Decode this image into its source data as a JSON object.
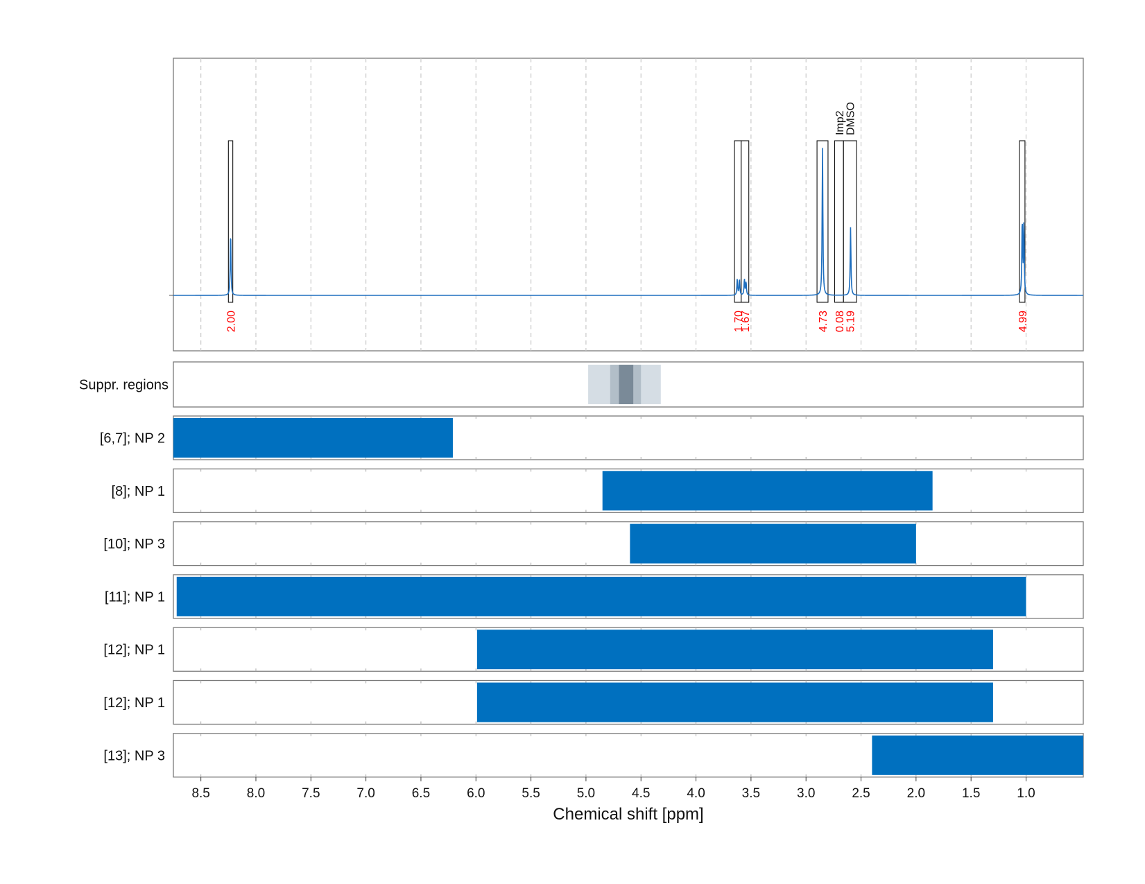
{
  "chart_data": {
    "type": "nmr-spectrum-with-range-bars",
    "xlabel": "Chemical shift [ppm]",
    "xlim": [
      8.75,
      0.48
    ],
    "x_ticks": [
      "8.5",
      "8.0",
      "7.5",
      "7.0",
      "6.5",
      "6.0",
      "5.5",
      "5.0",
      "4.5",
      "4.0",
      "3.5",
      "3.0",
      "2.5",
      "2.0",
      "1.5",
      "1.0"
    ],
    "spectrum": {
      "color": "#1f6fbf",
      "peaks": [
        {
          "ppm": 8.23,
          "height": 0.44,
          "width": 0.004
        },
        {
          "ppm": 3.625,
          "height": 0.11,
          "width": 0.004
        },
        {
          "ppm": 3.605,
          "height": 0.11,
          "width": 0.004
        },
        {
          "ppm": 3.56,
          "height": 0.11,
          "width": 0.004
        },
        {
          "ppm": 3.545,
          "height": 0.09,
          "width": 0.004
        },
        {
          "ppm": 2.85,
          "height": 1.0,
          "width": 0.004
        },
        {
          "ppm": 2.595,
          "height": 0.46,
          "width": 0.004
        },
        {
          "ppm": 1.035,
          "height": 0.51,
          "width": 0.004
        },
        {
          "ppm": 1.02,
          "height": 0.47,
          "width": 0.004
        }
      ]
    },
    "integration_regions": [
      {
        "from": 8.25,
        "to": 8.21,
        "value": "2.00"
      },
      {
        "from": 3.65,
        "to": 3.59,
        "value": "1.70"
      },
      {
        "from": 3.59,
        "to": 3.52,
        "value": "1.67"
      },
      {
        "from": 2.9,
        "to": 2.8,
        "value": "4.73"
      },
      {
        "from": 2.74,
        "to": 2.66,
        "value": "0.08"
      },
      {
        "from": 2.66,
        "to": 2.54,
        "value": "5.19"
      },
      {
        "from": 1.06,
        "to": 1.01,
        "value": "4.99"
      }
    ],
    "peak_annotations": [
      "Imp2",
      "DMSO"
    ],
    "suppression": {
      "label": "Suppr. regions",
      "bands": [
        {
          "from": 4.98,
          "to": 4.32,
          "color": "#d5dde4"
        },
        {
          "from": 4.78,
          "to": 4.5,
          "color": "#b2bec8"
        },
        {
          "from": 4.7,
          "to": 4.57,
          "color": "#7a8a98"
        }
      ]
    },
    "range_rows": [
      {
        "label": "[6,7]; NP 2",
        "from": 8.75,
        "to": 6.21
      },
      {
        "label": "[8]; NP 1",
        "from": 4.85,
        "to": 1.85
      },
      {
        "label": "[10]; NP 3",
        "from": 4.6,
        "to": 2.0
      },
      {
        "label": "[11]; NP 1",
        "from": 8.72,
        "to": 1.0
      },
      {
        "label": "[12]; NP 1",
        "from": 5.99,
        "to": 1.3
      },
      {
        "label": "[12]; NP 1",
        "from": 5.99,
        "to": 1.3
      },
      {
        "label": "[13]; NP 3",
        "from": 2.4,
        "to": 0.48
      }
    ],
    "bar_color": "#0070bf"
  }
}
